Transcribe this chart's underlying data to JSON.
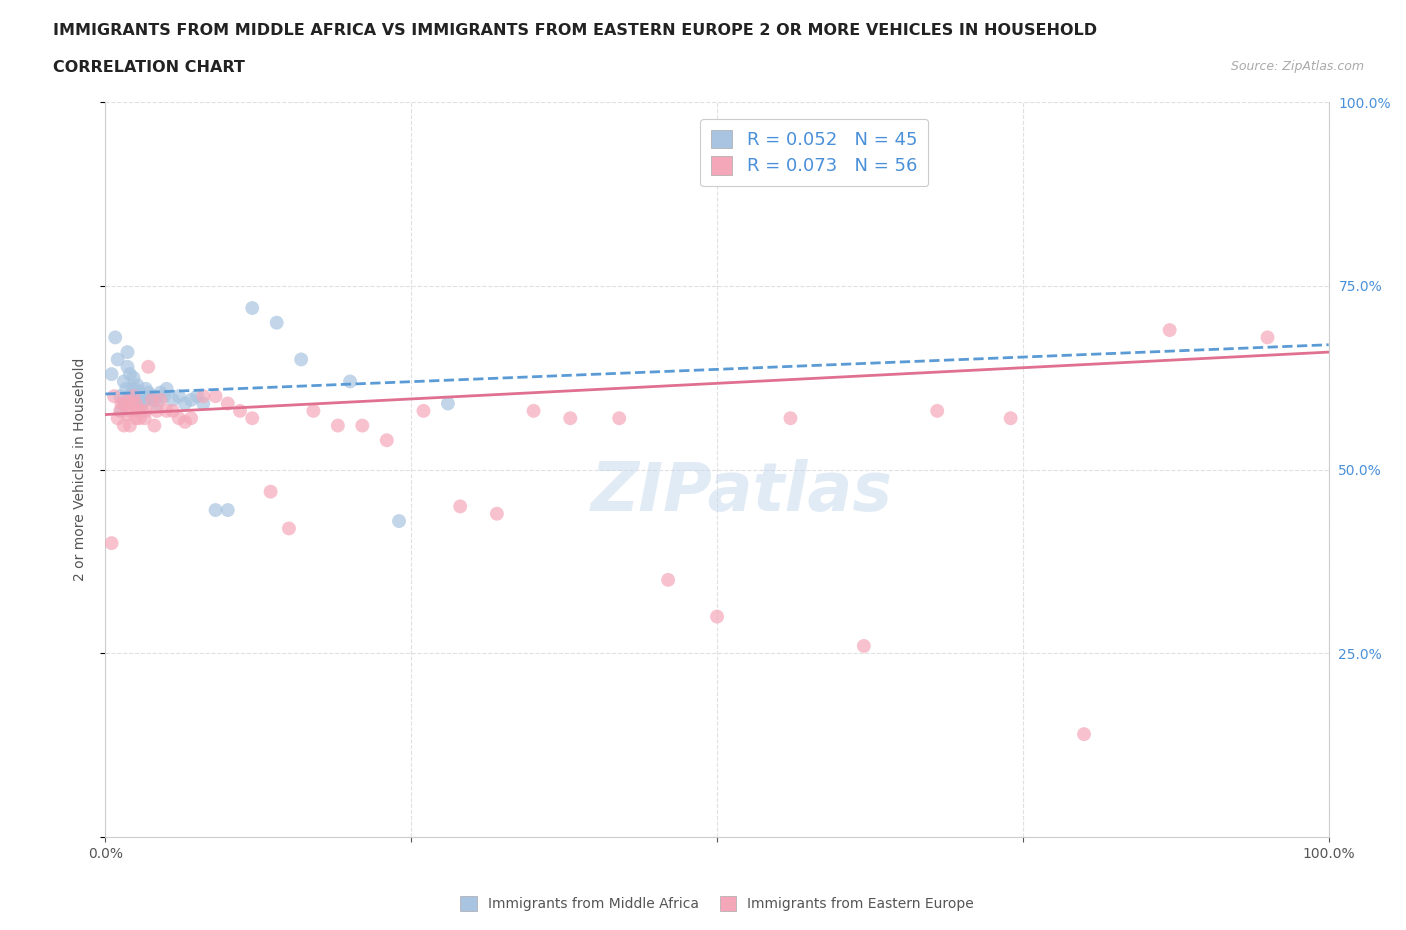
{
  "title_line1": "IMMIGRANTS FROM MIDDLE AFRICA VS IMMIGRANTS FROM EASTERN EUROPE 2 OR MORE VEHICLES IN HOUSEHOLD",
  "title_line2": "CORRELATION CHART",
  "source_text": "Source: ZipAtlas.com",
  "ylabel": "2 or more Vehicles in Household",
  "x_min": 0.0,
  "x_max": 1.0,
  "y_min": 0.0,
  "y_max": 1.0,
  "blue_color": "#a8c4e0",
  "pink_color": "#f4a7b9",
  "blue_line_color": "#5b9bd5",
  "pink_line_color": "#e07090",
  "R_blue": 0.052,
  "N_blue": 45,
  "R_pink": 0.073,
  "N_pink": 56,
  "watermark_text": "ZIPatlas",
  "legend_label_blue": "Immigrants from Middle Africa",
  "legend_label_pink": "Immigrants from Eastern Europe",
  "blue_scatter_x": [
    0.005,
    0.008,
    0.01,
    0.012,
    0.013,
    0.015,
    0.015,
    0.017,
    0.018,
    0.018,
    0.02,
    0.02,
    0.022,
    0.022,
    0.023,
    0.024,
    0.025,
    0.026,
    0.027,
    0.028,
    0.03,
    0.03,
    0.032,
    0.033,
    0.035,
    0.038,
    0.04,
    0.042,
    0.045,
    0.048,
    0.05,
    0.055,
    0.06,
    0.065,
    0.07,
    0.075,
    0.08,
    0.09,
    0.1,
    0.12,
    0.14,
    0.16,
    0.2,
    0.24,
    0.28
  ],
  "blue_scatter_y": [
    0.63,
    0.68,
    0.65,
    0.6,
    0.58,
    0.59,
    0.62,
    0.61,
    0.64,
    0.66,
    0.6,
    0.63,
    0.59,
    0.61,
    0.625,
    0.61,
    0.6,
    0.615,
    0.595,
    0.605,
    0.59,
    0.6,
    0.595,
    0.61,
    0.605,
    0.6,
    0.595,
    0.59,
    0.605,
    0.6,
    0.61,
    0.595,
    0.6,
    0.59,
    0.595,
    0.6,
    0.59,
    0.445,
    0.445,
    0.72,
    0.7,
    0.65,
    0.62,
    0.43,
    0.59
  ],
  "pink_scatter_x": [
    0.005,
    0.007,
    0.01,
    0.012,
    0.013,
    0.015,
    0.015,
    0.018,
    0.018,
    0.02,
    0.02,
    0.022,
    0.023,
    0.025,
    0.025,
    0.027,
    0.028,
    0.03,
    0.032,
    0.033,
    0.035,
    0.038,
    0.04,
    0.042,
    0.045,
    0.05,
    0.055,
    0.06,
    0.065,
    0.07,
    0.08,
    0.09,
    0.1,
    0.11,
    0.12,
    0.135,
    0.15,
    0.17,
    0.19,
    0.21,
    0.23,
    0.26,
    0.29,
    0.32,
    0.35,
    0.38,
    0.42,
    0.46,
    0.5,
    0.56,
    0.62,
    0.68,
    0.74,
    0.8,
    0.87,
    0.95
  ],
  "pink_scatter_y": [
    0.4,
    0.6,
    0.57,
    0.58,
    0.59,
    0.56,
    0.59,
    0.575,
    0.595,
    0.56,
    0.58,
    0.59,
    0.6,
    0.57,
    0.59,
    0.58,
    0.57,
    0.58,
    0.57,
    0.58,
    0.64,
    0.595,
    0.56,
    0.58,
    0.595,
    0.58,
    0.58,
    0.57,
    0.565,
    0.57,
    0.6,
    0.6,
    0.59,
    0.58,
    0.57,
    0.47,
    0.42,
    0.58,
    0.56,
    0.56,
    0.54,
    0.58,
    0.45,
    0.44,
    0.58,
    0.57,
    0.57,
    0.35,
    0.3,
    0.57,
    0.26,
    0.58,
    0.57,
    0.14,
    0.69,
    0.68
  ],
  "title_fontsize": 11.5,
  "subtitle_fontsize": 11.5,
  "axis_fontsize": 10,
  "tick_fontsize": 10,
  "source_fontsize": 9,
  "watermark_fontsize": 48,
  "scatter_size": 100,
  "background_color": "#ffffff",
  "grid_color": "#dddddd",
  "right_tick_color": "#4a90d9",
  "blue_line_start_y": 0.603,
  "blue_line_end_y": 0.67,
  "pink_line_start_y": 0.575,
  "pink_line_end_y": 0.66
}
